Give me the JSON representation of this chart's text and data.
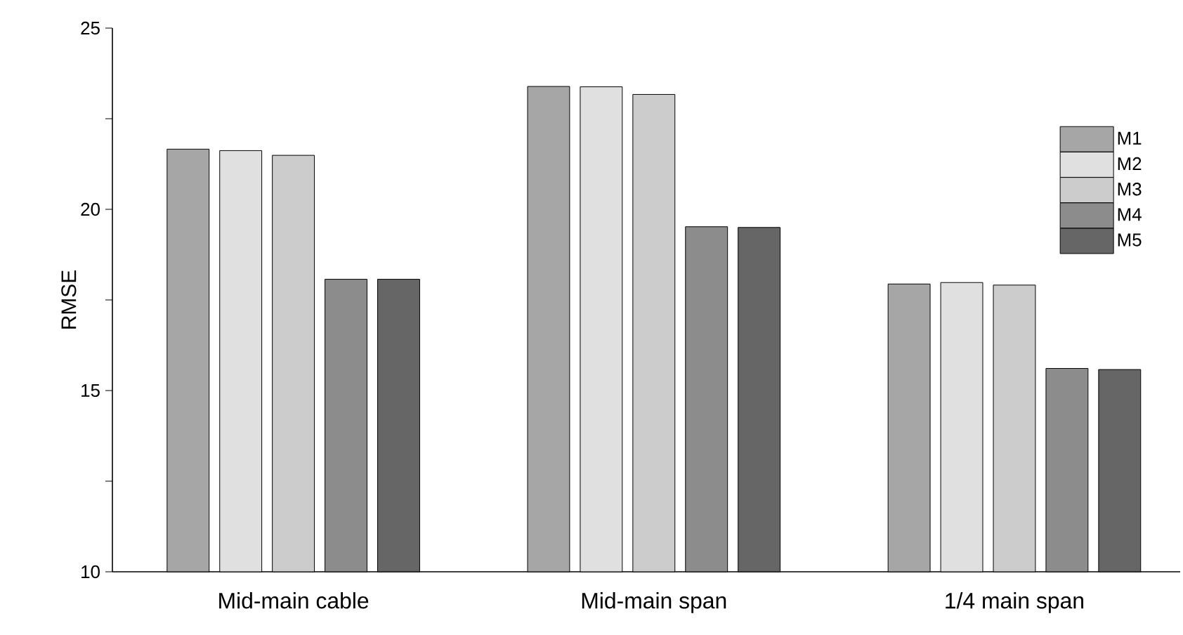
{
  "chart_data": {
    "type": "bar",
    "ylabel": "RMSE",
    "categories": [
      "Mid-main cable",
      "Mid-main span",
      "1/4 main span"
    ],
    "series": [
      {
        "name": "M1",
        "color": "#a6a6a6",
        "values": [
          21.66,
          23.39,
          17.94
        ]
      },
      {
        "name": "M2",
        "color": "#e0e0e0",
        "values": [
          21.62,
          23.38,
          17.98
        ]
      },
      {
        "name": "M3",
        "color": "#cccccc",
        "values": [
          21.49,
          23.17,
          17.91
        ]
      },
      {
        "name": "M4",
        "color": "#8c8c8c",
        "values": [
          18.07,
          19.52,
          15.61
        ]
      },
      {
        "name": "M5",
        "color": "#666666",
        "values": [
          18.07,
          19.5,
          15.58
        ]
      }
    ],
    "ylim": [
      10,
      25
    ],
    "yticks": [
      10,
      {
        "value": 12.5,
        "label": null
      },
      15,
      {
        "value": 17.5,
        "label": null
      },
      20,
      {
        "value": 22.5,
        "label": null
      },
      25
    ],
    "grid": false,
    "legend": "top right"
  }
}
